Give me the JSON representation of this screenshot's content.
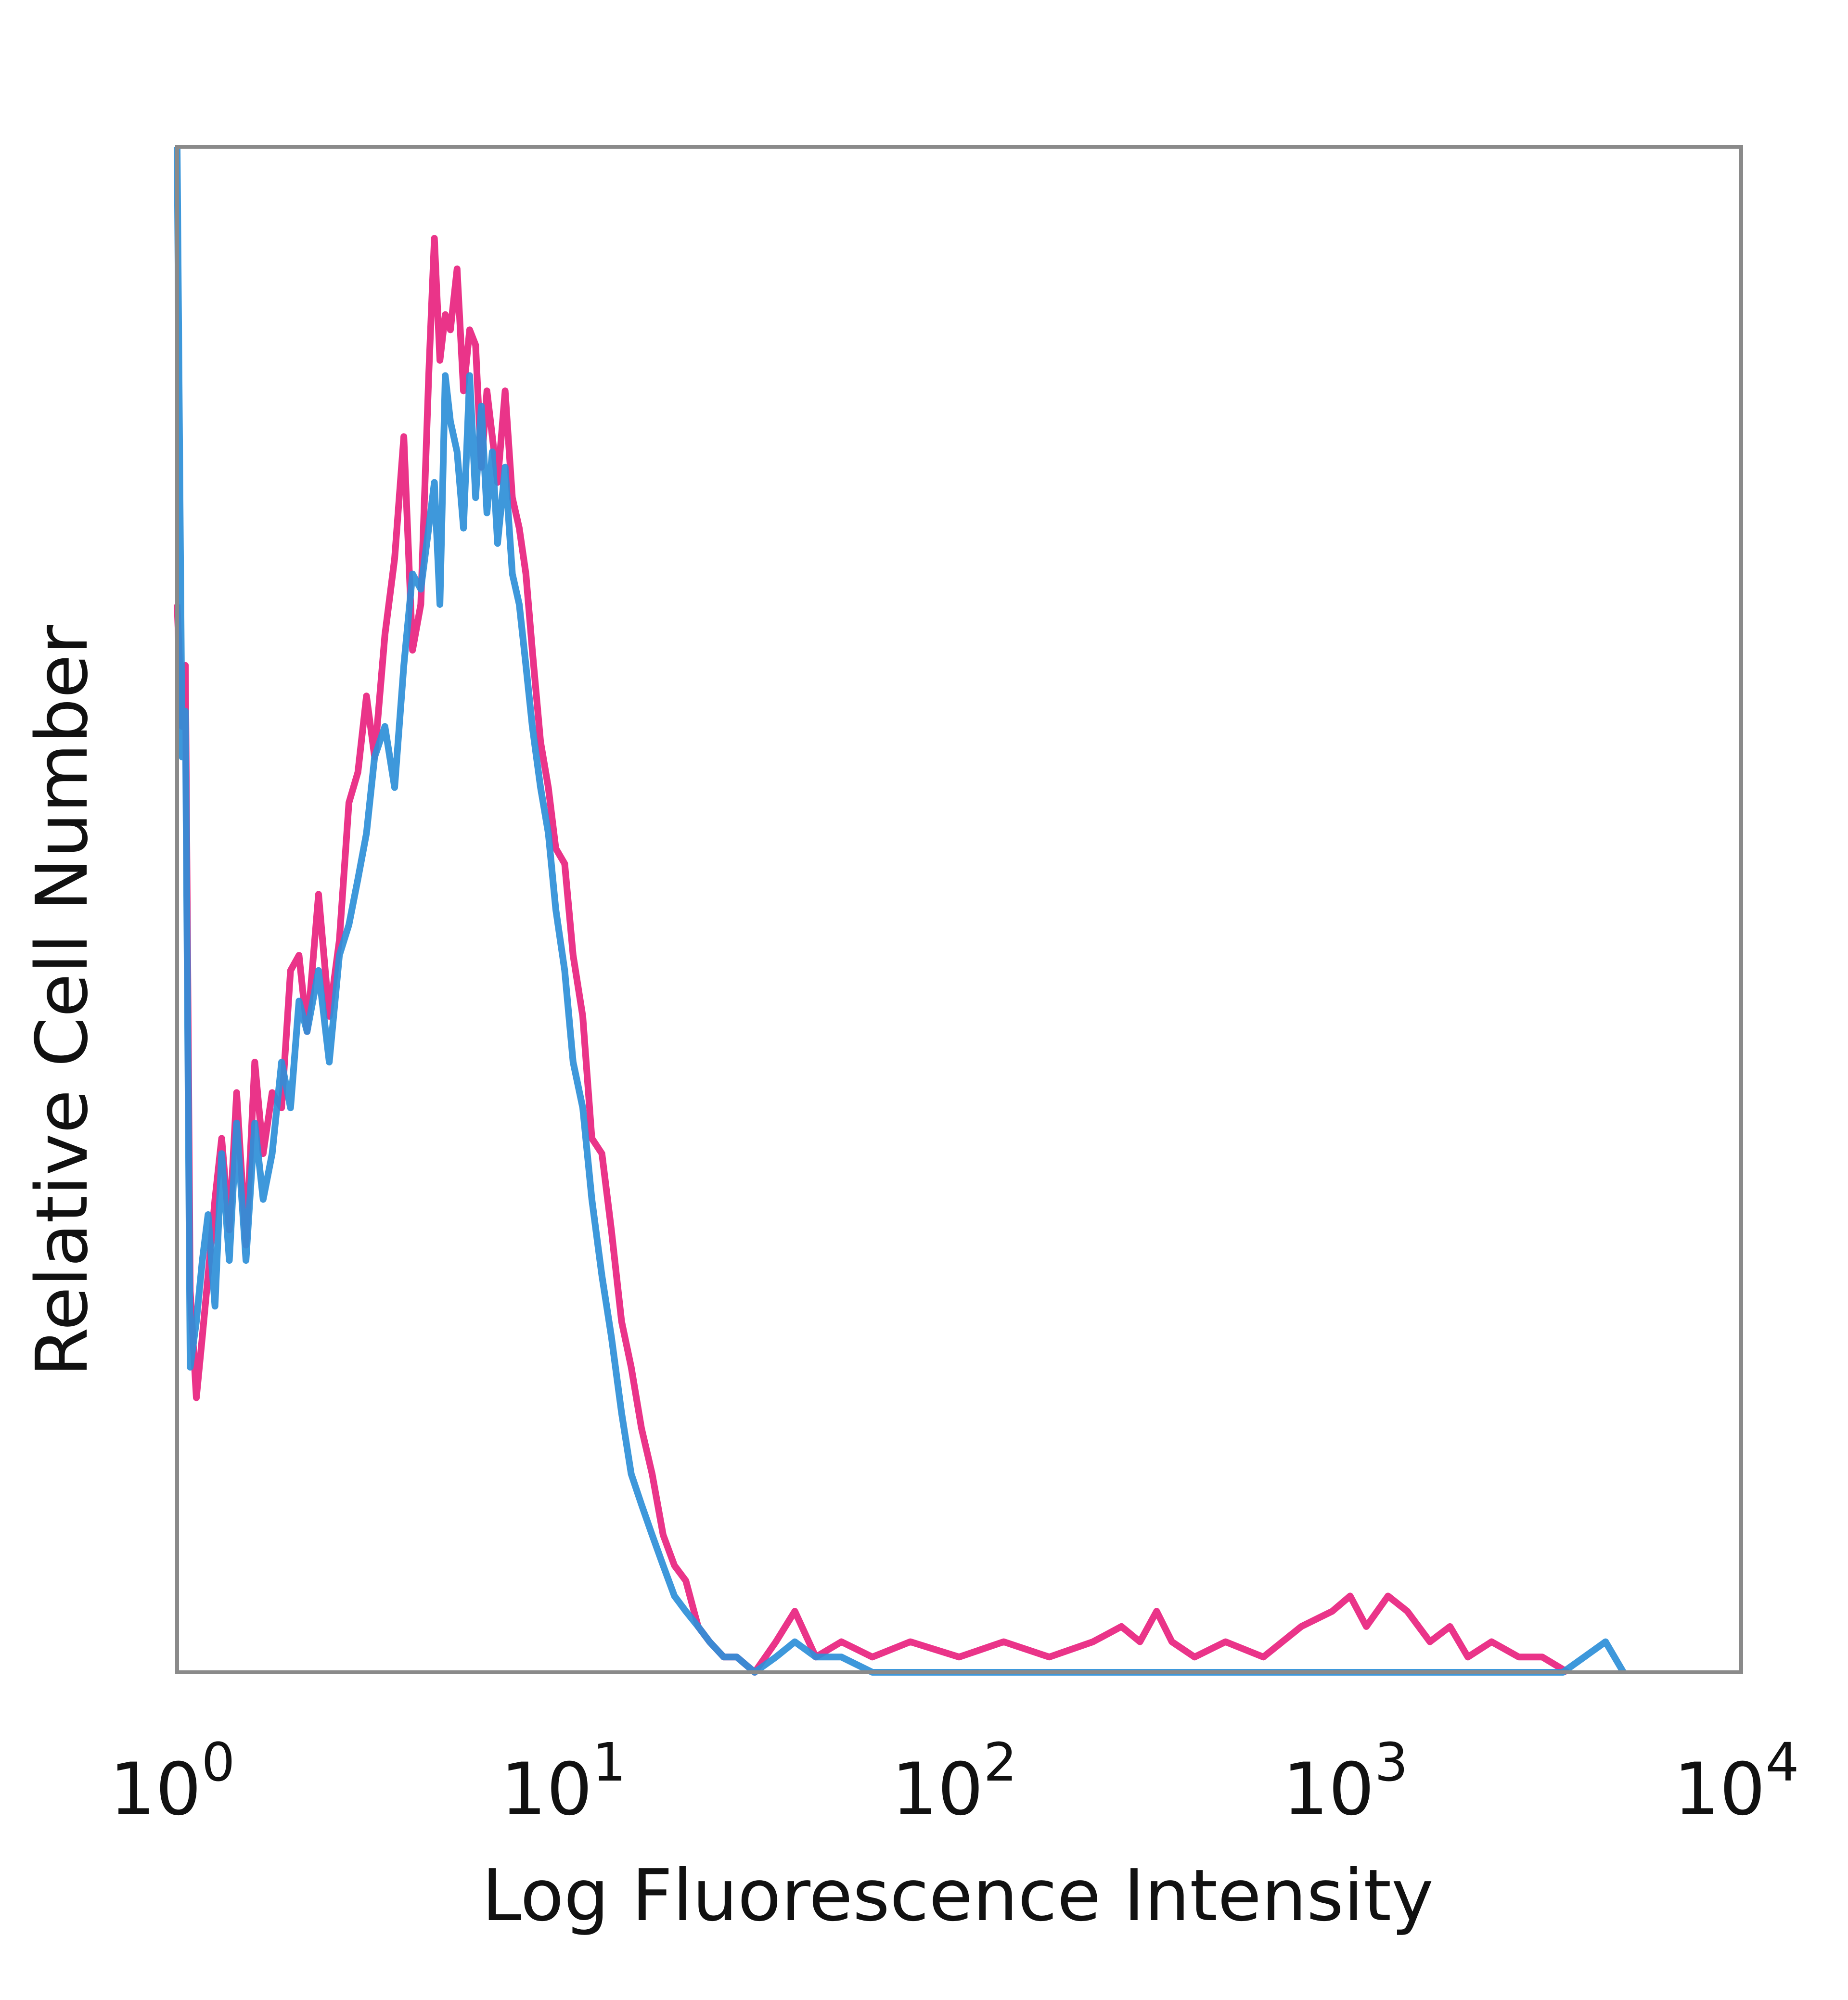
{
  "chart_data": {
    "type": "line",
    "xlabel": "Log Fluorescence Intensity",
    "ylabel": "Relative Cell Number",
    "x_scale": "log",
    "xlim": [
      1,
      10000
    ],
    "ylim": [
      0,
      100
    ],
    "x_ticks": [
      {
        "base": "10",
        "exp": "0"
      },
      {
        "base": "10",
        "exp": "1"
      },
      {
        "base": "10",
        "exp": "2"
      },
      {
        "base": "10",
        "exp": "3"
      },
      {
        "base": "10",
        "exp": "4"
      }
    ],
    "grid": false,
    "legend": "none",
    "series": [
      {
        "color": "#e8237f",
        "x": [
          1.0,
          1.03,
          1.05,
          1.08,
          1.12,
          1.16,
          1.2,
          1.25,
          1.3,
          1.36,
          1.42,
          1.5,
          1.58,
          1.66,
          1.75,
          1.85,
          1.95,
          2.05,
          2.15,
          2.3,
          2.45,
          2.6,
          2.75,
          2.9,
          3.05,
          3.2,
          3.4,
          3.6,
          3.8,
          4.0,
          4.2,
          4.4,
          4.55,
          4.7,
          4.85,
          5.0,
          5.2,
          5.4,
          5.6,
          5.8,
          6.0,
          6.2,
          6.4,
          6.6,
          6.9,
          7.2,
          7.5,
          7.8,
          8.1,
          8.5,
          8.9,
          9.3,
          9.8,
          10.3,
          10.9,
          11.5,
          12.2,
          12.9,
          13.7,
          14.5,
          15.4,
          16.4,
          17.5,
          18.7,
          20.0,
          21.5,
          23.0,
          25.0,
          27.0,
          30.0,
          34.0,
          38.0,
          43.0,
          50.0,
          60.0,
          75.0,
          100.0,
          130.0,
          170.0,
          220.0,
          260.0,
          290.0,
          320.0,
          350.0,
          400.0,
          480.0,
          600.0,
          750.0,
          900.0,
          1000.0,
          1100.0,
          1250.0,
          1400.0,
          1600.0,
          1800.0,
          2000.0,
          2300.0,
          2700.0,
          3100.0,
          3600.0
        ],
        "values": [
          70,
          62,
          66,
          25,
          18,
          22,
          26,
          31,
          35,
          29,
          38,
          28,
          40,
          34,
          38,
          37,
          46,
          47,
          42,
          51,
          43,
          48,
          57,
          59,
          64,
          60,
          68,
          73,
          81,
          67,
          70,
          85,
          94,
          86,
          89,
          88,
          92,
          84,
          88,
          87,
          79,
          84,
          81,
          78,
          84,
          77,
          75,
          72,
          67,
          61,
          58,
          54,
          53,
          47,
          43,
          35,
          34,
          29,
          23,
          20,
          16,
          13,
          9,
          7,
          6,
          3,
          2,
          1,
          1,
          0,
          2,
          4,
          1,
          2,
          1,
          2,
          1,
          2,
          1,
          2,
          3,
          2,
          4,
          2,
          1,
          2,
          1,
          3,
          4,
          5,
          3,
          5,
          4,
          2,
          3,
          1,
          2,
          1,
          1,
          0
        ]
      },
      {
        "color": "#2e8fd8",
        "x": [
          1.0,
          1.03,
          1.05,
          1.08,
          1.12,
          1.16,
          1.2,
          1.25,
          1.3,
          1.36,
          1.42,
          1.5,
          1.58,
          1.66,
          1.75,
          1.85,
          1.95,
          2.05,
          2.15,
          2.3,
          2.45,
          2.6,
          2.75,
          2.9,
          3.05,
          3.2,
          3.4,
          3.6,
          3.8,
          4.0,
          4.2,
          4.4,
          4.55,
          4.7,
          4.85,
          5.0,
          5.2,
          5.4,
          5.6,
          5.8,
          6.0,
          6.2,
          6.4,
          6.6,
          6.9,
          7.2,
          7.5,
          7.8,
          8.1,
          8.5,
          8.9,
          9.3,
          9.8,
          10.3,
          10.9,
          11.5,
          12.2,
          12.9,
          13.7,
          14.5,
          15.4,
          16.4,
          17.5,
          18.7,
          20.0,
          21.5,
          23.0,
          25.0,
          27.0,
          30.0,
          34.0,
          38.0,
          43.0,
          50.0,
          60.0,
          75.0,
          100.0,
          130.0,
          170.0,
          220.0,
          300.0,
          400.0,
          600.0,
          1000.0,
          1600.0,
          2500.0,
          3500.0,
          4500.0,
          5000.0
        ],
        "values": [
          100,
          60,
          63,
          20,
          23,
          27,
          30,
          24,
          34,
          27,
          36,
          27,
          36,
          31,
          34,
          40,
          37,
          44,
          42,
          46,
          40,
          47,
          49,
          52,
          55,
          60,
          62,
          58,
          66,
          72,
          71,
          75,
          78,
          70,
          85,
          82,
          80,
          75,
          85,
          77,
          83,
          76,
          80,
          74,
          79,
          72,
          70,
          66,
          62,
          58,
          55,
          50,
          46,
          40,
          37,
          31,
          26,
          22,
          17,
          13,
          11,
          9,
          7,
          5,
          4,
          3,
          2,
          1,
          1,
          0,
          1,
          2,
          1,
          1,
          0,
          0,
          0,
          0,
          0,
          0,
          0,
          0,
          0,
          0,
          0,
          0,
          0,
          2,
          0
        ]
      }
    ]
  }
}
